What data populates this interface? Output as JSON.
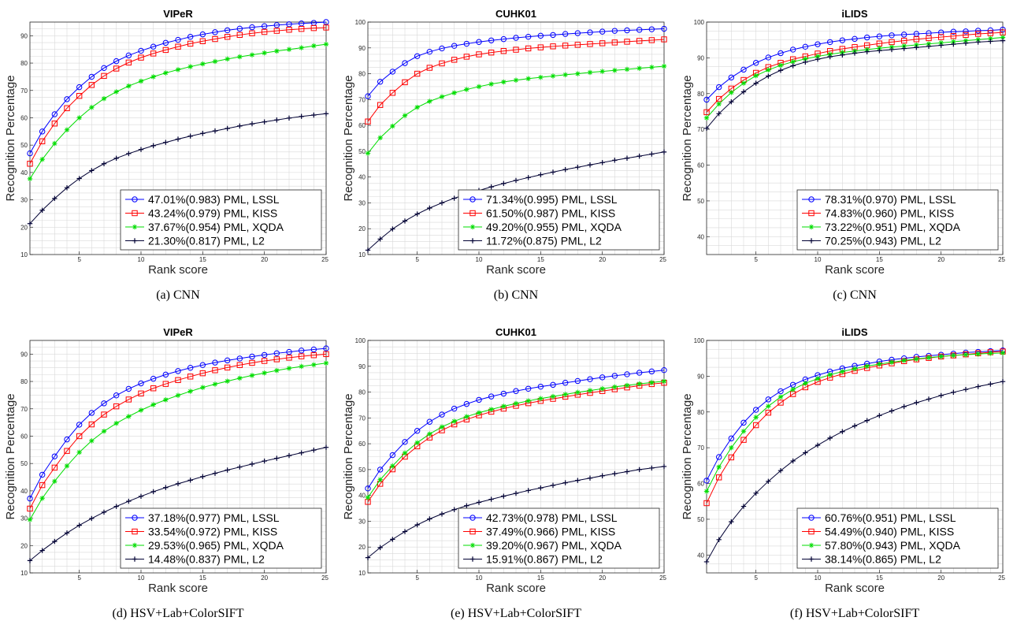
{
  "figure": {
    "x_axis_label": "Rank score",
    "y_axis_label": "Recognition Percentage",
    "series_colors": [
      "#0000ff",
      "#ff0000",
      "#00dd00",
      "#000033"
    ],
    "series_markers": [
      "circle",
      "square",
      "star",
      "plus"
    ]
  },
  "chart_data": [
    {
      "type": "line",
      "title": "VIPeR",
      "caption": "(a) CNN",
      "xlabel": "Rank score",
      "ylabel": "Recognition Percentage",
      "xlim": [
        1,
        25
      ],
      "ylim": [
        10,
        95
      ],
      "xticks": [
        5,
        10,
        15,
        20,
        25
      ],
      "yticks": [
        10,
        20,
        30,
        40,
        50,
        60,
        70,
        80,
        90
      ],
      "grid": true,
      "legend_position": "bottom-right",
      "x": [
        1,
        2,
        3,
        4,
        5,
        6,
        7,
        8,
        9,
        10,
        11,
        12,
        13,
        14,
        15,
        16,
        17,
        18,
        19,
        20,
        21,
        22,
        23,
        24,
        25
      ],
      "series": [
        {
          "name": "47.01%(0.983) PML, LSSL",
          "values": [
            47.0,
            55.0,
            61.3,
            66.8,
            71.2,
            75.0,
            78.2,
            80.7,
            82.8,
            84.5,
            86.0,
            87.4,
            88.5,
            89.6,
            90.5,
            91.3,
            92.0,
            92.6,
            93.1,
            93.5,
            93.9,
            94.2,
            94.5,
            94.7,
            95.0
          ]
        },
        {
          "name": "43.24%(0.979) PML, KISS",
          "values": [
            43.2,
            51.4,
            57.9,
            63.5,
            68.0,
            72.0,
            75.3,
            78.0,
            80.2,
            82.0,
            83.5,
            84.8,
            86.0,
            87.1,
            88.0,
            88.8,
            89.6,
            90.3,
            90.9,
            91.4,
            91.8,
            92.2,
            92.5,
            92.8,
            93.0
          ]
        },
        {
          "name": "37.67%(0.954) PML, XQDA",
          "values": [
            37.7,
            44.8,
            50.6,
            55.6,
            60.0,
            63.8,
            67.0,
            69.5,
            71.6,
            73.4,
            75.0,
            76.4,
            77.6,
            78.7,
            79.7,
            80.6,
            81.5,
            82.3,
            83.0,
            83.7,
            84.4,
            85.0,
            85.6,
            86.3,
            86.9
          ]
        },
        {
          "name": "21.30%(0.817) PML, L2",
          "values": [
            21.3,
            26.2,
            30.5,
            34.4,
            37.8,
            40.7,
            43.2,
            45.2,
            46.9,
            48.4,
            49.8,
            51.0,
            52.2,
            53.3,
            54.3,
            55.2,
            56.1,
            57.0,
            57.8,
            58.5,
            59.2,
            59.9,
            60.5,
            61.0,
            61.5
          ]
        }
      ]
    },
    {
      "type": "line",
      "title": "CUHK01",
      "caption": "(b) CNN",
      "xlabel": "Rank score",
      "ylabel": "Recognition Percentage",
      "xlim": [
        1,
        25
      ],
      "ylim": [
        10,
        100
      ],
      "xticks": [
        5,
        10,
        15,
        20,
        25
      ],
      "yticks": [
        10,
        20,
        30,
        40,
        50,
        60,
        70,
        80,
        90,
        100
      ],
      "grid": true,
      "legend_position": "bottom-right",
      "x": [
        1,
        2,
        3,
        4,
        5,
        6,
        7,
        8,
        9,
        10,
        11,
        12,
        13,
        14,
        15,
        16,
        17,
        18,
        19,
        20,
        21,
        22,
        23,
        24,
        25
      ],
      "series": [
        {
          "name": "71.34%(0.995) PML, LSSL",
          "values": [
            71.3,
            76.9,
            80.8,
            84.1,
            86.8,
            88.5,
            89.8,
            90.8,
            91.6,
            92.3,
            92.9,
            93.4,
            93.9,
            94.3,
            94.7,
            95.0,
            95.4,
            95.7,
            96.0,
            96.3,
            96.6,
            96.8,
            97.0,
            97.2,
            97.4
          ]
        },
        {
          "name": "61.50%(0.987) PML, KISS",
          "values": [
            61.5,
            67.9,
            72.6,
            76.7,
            80.0,
            82.3,
            84.0,
            85.4,
            86.6,
            87.5,
            88.2,
            88.8,
            89.3,
            89.8,
            90.2,
            90.6,
            90.9,
            91.2,
            91.5,
            91.8,
            92.1,
            92.4,
            92.7,
            93.0,
            93.3
          ]
        },
        {
          "name": "49.20%(0.955) PML, XQDA",
          "values": [
            49.2,
            55.2,
            59.7,
            63.8,
            67.0,
            69.3,
            71.1,
            72.6,
            73.9,
            75.0,
            76.0,
            76.8,
            77.5,
            78.1,
            78.6,
            79.1,
            79.6,
            80.0,
            80.5,
            80.9,
            81.3,
            81.7,
            82.1,
            82.5,
            82.9
          ]
        },
        {
          "name": "11.72%(0.875) PML, L2",
          "values": [
            11.7,
            16.0,
            19.9,
            23.0,
            25.7,
            28.0,
            30.0,
            31.8,
            33.3,
            34.8,
            36.2,
            37.5,
            38.7,
            39.8,
            40.9,
            41.9,
            42.9,
            43.8,
            44.7,
            45.6,
            46.5,
            47.3,
            48.1,
            48.9,
            49.7
          ]
        }
      ]
    },
    {
      "type": "line",
      "title": "iLIDS",
      "caption": "(c) CNN",
      "xlabel": "Rank score",
      "ylabel": "Recognition Percentage",
      "xlim": [
        1,
        25
      ],
      "ylim": [
        35,
        100
      ],
      "xticks": [
        5,
        10,
        15,
        20,
        25
      ],
      "yticks": [
        40,
        50,
        60,
        70,
        80,
        90,
        100
      ],
      "grid": true,
      "legend_position": "bottom-right",
      "x": [
        1,
        2,
        3,
        4,
        5,
        6,
        7,
        8,
        9,
        10,
        11,
        12,
        13,
        14,
        15,
        16,
        17,
        18,
        19,
        20,
        21,
        22,
        23,
        24,
        25
      ],
      "series": [
        {
          "name": "78.31%(0.970) PML, LSSL",
          "values": [
            78.3,
            81.8,
            84.5,
            86.7,
            88.6,
            90.1,
            91.3,
            92.3,
            93.1,
            93.8,
            94.4,
            94.9,
            95.3,
            95.7,
            96.0,
            96.3,
            96.5,
            96.7,
            96.9,
            97.1,
            97.3,
            97.4,
            97.6,
            97.7,
            97.9
          ]
        },
        {
          "name": "74.83%(0.960) PML, KISS",
          "values": [
            74.8,
            78.5,
            81.4,
            83.8,
            85.8,
            87.4,
            88.6,
            89.6,
            90.4,
            91.2,
            91.9,
            92.5,
            93.0,
            93.5,
            94.0,
            94.4,
            94.8,
            95.2,
            95.5,
            95.8,
            96.1,
            96.4,
            96.7,
            96.9,
            97.1
          ]
        },
        {
          "name": "73.22%(0.951) PML, XQDA",
          "values": [
            73.2,
            77.1,
            80.3,
            82.9,
            85.0,
            86.6,
            87.9,
            88.9,
            89.7,
            90.4,
            91.0,
            91.5,
            91.9,
            92.3,
            92.7,
            93.0,
            93.3,
            93.6,
            93.9,
            94.2,
            94.5,
            94.8,
            95.1,
            95.4,
            95.7
          ]
        },
        {
          "name": "70.25%(0.943) PML, L2",
          "values": [
            70.3,
            74.4,
            77.7,
            80.5,
            82.9,
            84.9,
            86.5,
            87.8,
            88.8,
            89.6,
            90.3,
            90.8,
            91.3,
            91.7,
            92.0,
            92.3,
            92.6,
            92.9,
            93.2,
            93.5,
            93.8,
            94.1,
            94.4,
            94.6,
            94.8
          ]
        }
      ]
    },
    {
      "type": "line",
      "title": "VIPeR",
      "caption": "(d) HSV+Lab+ColorSIFT",
      "xlabel": "Rank score",
      "ylabel": "Recognition Percentage",
      "xlim": [
        1,
        25
      ],
      "ylim": [
        10,
        95
      ],
      "xticks": [
        5,
        10,
        15,
        20,
        25
      ],
      "yticks": [
        10,
        20,
        30,
        40,
        50,
        60,
        70,
        80,
        90
      ],
      "grid": true,
      "legend_position": "bottom-right",
      "x": [
        1,
        2,
        3,
        4,
        5,
        6,
        7,
        8,
        9,
        10,
        11,
        12,
        13,
        14,
        15,
        16,
        17,
        18,
        19,
        20,
        21,
        22,
        23,
        24,
        25
      ],
      "series": [
        {
          "name": "37.18%(0.977) PML, LSSL",
          "values": [
            37.2,
            45.9,
            52.6,
            58.8,
            64.2,
            68.5,
            72.0,
            74.9,
            77.3,
            79.3,
            81.0,
            82.5,
            83.8,
            85.0,
            86.0,
            86.9,
            87.7,
            88.4,
            89.1,
            89.7,
            90.3,
            90.8,
            91.3,
            91.7,
            92.1
          ]
        },
        {
          "name": "33.54%(0.972) PML, KISS",
          "values": [
            33.5,
            42.1,
            48.5,
            54.6,
            60.0,
            64.3,
            67.9,
            70.9,
            73.4,
            75.6,
            77.5,
            79.1,
            80.5,
            81.8,
            83.0,
            84.1,
            85.1,
            86.0,
            86.8,
            87.5,
            88.1,
            88.7,
            89.2,
            89.6,
            90.0
          ]
        },
        {
          "name": "29.53%(0.965) PML, XQDA",
          "values": [
            29.5,
            37.3,
            43.5,
            49.1,
            54.1,
            58.3,
            61.8,
            64.7,
            67.2,
            69.5,
            71.5,
            73.3,
            74.9,
            76.4,
            77.8,
            79.0,
            80.1,
            81.2,
            82.2,
            83.1,
            84.0,
            84.8,
            85.5,
            86.1,
            86.7
          ]
        },
        {
          "name": "14.48%(0.837) PML, L2",
          "values": [
            14.5,
            18.2,
            21.5,
            24.6,
            27.4,
            29.9,
            32.2,
            34.3,
            36.2,
            38.0,
            39.7,
            41.2,
            42.6,
            43.9,
            45.2,
            46.4,
            47.6,
            48.7,
            49.8,
            50.9,
            51.9,
            52.9,
            53.9,
            54.9,
            55.9
          ]
        }
      ]
    },
    {
      "type": "line",
      "title": "CUHK01",
      "caption": "(e) HSV+Lab+ColorSIFT",
      "xlabel": "Rank score",
      "ylabel": "Recognition Percentage",
      "xlim": [
        1,
        25
      ],
      "ylim": [
        10,
        100
      ],
      "xticks": [
        5,
        10,
        15,
        20,
        25
      ],
      "yticks": [
        10,
        20,
        30,
        40,
        50,
        60,
        70,
        80,
        90,
        100
      ],
      "grid": true,
      "legend_position": "bottom-right",
      "x": [
        1,
        2,
        3,
        4,
        5,
        6,
        7,
        8,
        9,
        10,
        11,
        12,
        13,
        14,
        15,
        16,
        17,
        18,
        19,
        20,
        21,
        22,
        23,
        24,
        25
      ],
      "series": [
        {
          "name": "42.73%(0.978) PML, LSSL",
          "values": [
            42.7,
            50.0,
            55.6,
            60.7,
            65.0,
            68.5,
            71.3,
            73.6,
            75.4,
            77.0,
            78.3,
            79.4,
            80.4,
            81.3,
            82.1,
            82.8,
            83.6,
            84.3,
            85.0,
            85.7,
            86.3,
            86.9,
            87.5,
            88.0,
            88.5
          ]
        },
        {
          "name": "37.49%(0.966) PML, KISS",
          "values": [
            37.5,
            44.5,
            50.1,
            55.0,
            59.0,
            62.4,
            65.2,
            67.5,
            69.4,
            71.0,
            72.4,
            73.6,
            74.7,
            75.7,
            76.6,
            77.4,
            78.2,
            79.0,
            79.7,
            80.4,
            81.1,
            81.8,
            82.5,
            83.1,
            83.6
          ]
        },
        {
          "name": "39.20%(0.967) PML, XQDA",
          "values": [
            39.2,
            46.1,
            51.4,
            56.4,
            60.4,
            63.8,
            66.5,
            68.7,
            70.5,
            72.0,
            73.3,
            74.5,
            75.6,
            76.6,
            77.5,
            78.3,
            79.1,
            79.9,
            80.6,
            81.3,
            82.0,
            82.6,
            83.2,
            83.7,
            84.2
          ]
        },
        {
          "name": "15.91%(0.867) PML, L2",
          "values": [
            15.9,
            19.8,
            23.0,
            26.0,
            28.6,
            30.9,
            32.8,
            34.5,
            36.0,
            37.3,
            38.5,
            39.7,
            40.8,
            41.9,
            42.9,
            43.9,
            44.9,
            45.8,
            46.7,
            47.6,
            48.4,
            49.2,
            50.0,
            50.6,
            51.2
          ]
        }
      ]
    },
    {
      "type": "line",
      "title": "iLIDS",
      "caption": "(f) HSV+Lab+ColorSIFT",
      "xlabel": "Rank score",
      "ylabel": "Recognition Percentage",
      "xlim": [
        1,
        25
      ],
      "ylim": [
        35,
        100
      ],
      "xticks": [
        5,
        10,
        15,
        20,
        25
      ],
      "yticks": [
        40,
        50,
        60,
        70,
        80,
        90,
        100
      ],
      "grid": true,
      "legend_position": "bottom-right",
      "x": [
        1,
        2,
        3,
        4,
        5,
        6,
        7,
        8,
        9,
        10,
        11,
        12,
        13,
        14,
        15,
        16,
        17,
        18,
        19,
        20,
        21,
        22,
        23,
        24,
        25
      ],
      "series": [
        {
          "name": "60.76%(0.951) PML, LSSL",
          "values": [
            60.8,
            67.4,
            72.6,
            77.0,
            80.6,
            83.5,
            85.8,
            87.6,
            89.1,
            90.3,
            91.3,
            92.2,
            92.9,
            93.5,
            94.1,
            94.6,
            95.0,
            95.4,
            95.7,
            96.0,
            96.3,
            96.6,
            96.8,
            97.0,
            97.2
          ]
        },
        {
          "name": "54.49%(0.940) PML, KISS",
          "values": [
            54.5,
            61.7,
            67.3,
            72.2,
            76.3,
            79.8,
            82.6,
            85.0,
            86.9,
            88.4,
            89.6,
            90.6,
            91.5,
            92.3,
            93.0,
            93.6,
            94.2,
            94.7,
            95.1,
            95.5,
            95.8,
            96.1,
            96.4,
            96.7,
            96.9
          ]
        },
        {
          "name": "57.80%(0.943) PML, XQDA",
          "values": [
            57.8,
            64.6,
            70.0,
            74.6,
            78.5,
            81.6,
            84.2,
            86.3,
            88.0,
            89.3,
            90.4,
            91.3,
            92.1,
            92.8,
            93.4,
            93.9,
            94.4,
            94.8,
            95.2,
            95.5,
            95.8,
            96.0,
            96.2,
            96.4,
            96.5
          ]
        },
        {
          "name": "38.14%(0.865) PML, L2",
          "values": [
            38.1,
            44.3,
            49.3,
            53.6,
            57.3,
            60.6,
            63.6,
            66.3,
            68.6,
            70.7,
            72.7,
            74.5,
            76.1,
            77.6,
            79.0,
            80.3,
            81.5,
            82.6,
            83.6,
            84.6,
            85.5,
            86.3,
            87.1,
            87.8,
            88.5
          ]
        }
      ]
    }
  ]
}
